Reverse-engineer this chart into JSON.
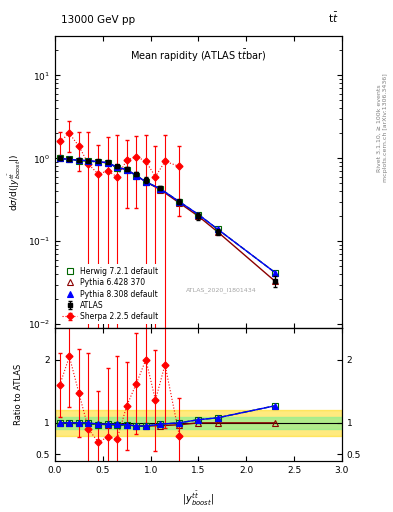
{
  "title_left": "13000 GeV pp",
  "title_right": "t$\\bar{t}$",
  "panel_title": "Mean rapidity (ATLAS t$\\bar{t}$bar)",
  "ylabel_main": "d$\\sigma$/d($|y^{t\\bar{t}}_{boost}|$)",
  "ylabel_ratio": "Ratio to ATLAS",
  "xlabel": "$|y^{t\\bar{t}}_{boost}|$",
  "right_label": "Rivet 3.1.10, ≥ 100k events",
  "right_label2": "mcplots.cern.ch [arXiv:1306.3436]",
  "watermark": "ATLAS_2020_I1801434",
  "atlas_x": [
    0.05,
    0.15,
    0.25,
    0.35,
    0.45,
    0.55,
    0.65,
    0.75,
    0.85,
    0.95,
    1.1,
    1.3,
    1.5,
    1.7,
    2.3
  ],
  "atlas_y": [
    1.0,
    0.97,
    0.95,
    0.94,
    0.93,
    0.91,
    0.8,
    0.75,
    0.65,
    0.55,
    0.44,
    0.3,
    0.2,
    0.13,
    0.033
  ],
  "atlas_yerr": [
    0.04,
    0.04,
    0.04,
    0.03,
    0.03,
    0.03,
    0.04,
    0.04,
    0.04,
    0.04,
    0.03,
    0.02,
    0.02,
    0.01,
    0.005
  ],
  "herwig_x": [
    0.05,
    0.15,
    0.25,
    0.35,
    0.45,
    0.55,
    0.65,
    0.75,
    0.85,
    0.95,
    1.1,
    1.3,
    1.5,
    1.7,
    2.3
  ],
  "herwig_y": [
    1.0,
    0.97,
    0.94,
    0.93,
    0.9,
    0.89,
    0.77,
    0.73,
    0.62,
    0.52,
    0.43,
    0.3,
    0.21,
    0.14,
    0.042
  ],
  "pythia6_x": [
    0.05,
    0.15,
    0.25,
    0.35,
    0.45,
    0.55,
    0.65,
    0.75,
    0.85,
    0.95,
    1.1,
    1.3,
    1.5,
    1.7,
    2.3
  ],
  "pythia6_y": [
    1.0,
    0.97,
    0.95,
    0.93,
    0.91,
    0.88,
    0.78,
    0.73,
    0.62,
    0.52,
    0.42,
    0.29,
    0.2,
    0.13,
    0.033
  ],
  "pythia8_x": [
    0.05,
    0.15,
    0.25,
    0.35,
    0.45,
    0.55,
    0.65,
    0.75,
    0.85,
    0.95,
    1.1,
    1.3,
    1.5,
    1.7,
    2.3
  ],
  "pythia8_y": [
    1.0,
    0.97,
    0.95,
    0.94,
    0.91,
    0.89,
    0.78,
    0.73,
    0.62,
    0.52,
    0.43,
    0.3,
    0.21,
    0.14,
    0.042
  ],
  "sherpa_x": [
    0.05,
    0.15,
    0.25,
    0.35,
    0.45,
    0.55,
    0.65,
    0.75,
    0.85,
    0.95,
    1.05,
    1.15,
    1.3
  ],
  "sherpa_y": [
    1.6,
    2.0,
    1.4,
    0.85,
    0.65,
    0.7,
    0.6,
    0.95,
    1.05,
    0.92,
    0.6,
    0.92,
    0.8
  ],
  "sherpa_yerr": [
    0.5,
    0.8,
    0.7,
    1.2,
    0.8,
    1.1,
    1.3,
    0.7,
    0.8,
    1.0,
    0.8,
    1.0,
    0.6
  ],
  "ratio_herwig_x": [
    0.05,
    0.15,
    0.25,
    0.35,
    0.45,
    0.55,
    0.65,
    0.75,
    0.85,
    0.95,
    1.1,
    1.3,
    1.5,
    1.7,
    2.3
  ],
  "ratio_herwig_y": [
    1.0,
    0.99,
    0.99,
    0.99,
    0.97,
    0.98,
    0.96,
    0.97,
    0.95,
    0.95,
    0.98,
    1.0,
    1.05,
    1.08,
    1.27
  ],
  "ratio_pythia6_x": [
    0.05,
    0.15,
    0.25,
    0.35,
    0.45,
    0.55,
    0.65,
    0.75,
    0.85,
    0.95,
    1.1,
    1.3,
    1.5,
    1.7,
    2.3
  ],
  "ratio_pythia6_y": [
    1.0,
    1.0,
    1.0,
    0.99,
    0.98,
    0.97,
    0.975,
    0.97,
    0.95,
    0.95,
    0.955,
    0.97,
    1.0,
    1.0,
    1.0
  ],
  "ratio_pythia8_x": [
    0.05,
    0.15,
    0.25,
    0.35,
    0.45,
    0.55,
    0.65,
    0.75,
    0.85,
    0.95,
    1.1,
    1.3,
    1.5,
    1.7,
    2.3
  ],
  "ratio_pythia8_y": [
    1.0,
    1.0,
    1.0,
    1.0,
    0.98,
    0.98,
    0.975,
    0.97,
    0.95,
    0.95,
    0.98,
    1.0,
    1.05,
    1.08,
    1.27
  ],
  "ratio_sherpa_x": [
    0.05,
    0.15,
    0.25,
    0.35,
    0.45,
    0.55,
    0.65,
    0.75,
    0.85,
    0.95,
    1.05,
    1.15,
    1.3
  ],
  "ratio_sherpa_y": [
    1.6,
    2.05,
    1.47,
    0.9,
    0.7,
    0.77,
    0.75,
    1.27,
    1.62,
    2.0,
    1.36,
    1.92,
    0.8
  ],
  "ratio_sherpa_yerr": [
    0.5,
    0.8,
    0.7,
    1.2,
    0.8,
    1.1,
    1.3,
    0.7,
    0.8,
    1.0,
    0.8,
    1.0,
    0.6
  ],
  "band_green_lo": 0.9,
  "band_green_hi": 1.1,
  "band_yellow_lo": 0.8,
  "band_yellow_hi": 1.2,
  "atlas_color": "black",
  "herwig_color": "#006600",
  "pythia6_color": "#8B0000",
  "pythia8_color": "blue",
  "sherpa_color": "red",
  "ylim_main": [
    0.009,
    30
  ],
  "ylim_ratio": [
    0.4,
    2.5
  ],
  "xlim": [
    0,
    3
  ]
}
